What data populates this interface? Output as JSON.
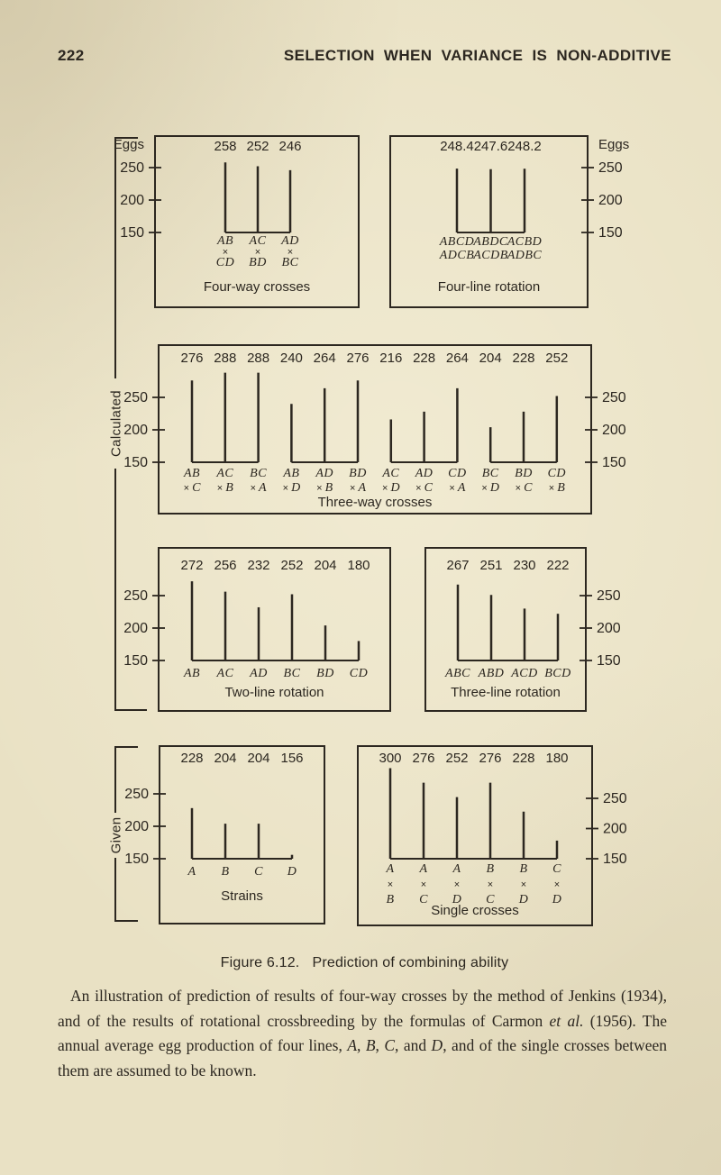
{
  "page": {
    "number": "222",
    "running_head": "SELECTION WHEN VARIANCE IS NON-ADDITIVE",
    "caption_label": "Figure 6.12.",
    "caption_title": "Prediction of combining ability",
    "body_segments": [
      {
        "text": "An illustration of prediction of results of four-way crosses by the method of Jenkins (1934), and of the results of rotational crossbreeding by the formulas of Carmon ",
        "italic": false
      },
      {
        "text": "et al.",
        "italic": true
      },
      {
        "text": " (1956).  The annual average egg production of four lines, ",
        "italic": false
      },
      {
        "text": "A",
        "italic": true
      },
      {
        "text": ", ",
        "italic": false
      },
      {
        "text": "B",
        "italic": true
      },
      {
        "text": ", ",
        "italic": false
      },
      {
        "text": "C",
        "italic": true
      },
      {
        "text": ", and ",
        "italic": false
      },
      {
        "text": "D",
        "italic": true
      },
      {
        "text": ", and of the single crosses between them are assumed to be known.",
        "italic": false
      }
    ]
  },
  "groups": {
    "calculated_label": "Calculated",
    "given_label": "Given"
  },
  "chart_data": [
    {
      "id": "four-way-crosses",
      "type": "bar",
      "title": "Four-way crosses",
      "categories": [
        [
          "AB",
          "×",
          "CD"
        ],
        [
          "AC",
          "×",
          "BD"
        ],
        [
          "AD",
          "×",
          "BC"
        ]
      ],
      "values": [
        258,
        252,
        246
      ],
      "ylabel": "Eggs",
      "yticks": [
        250,
        200,
        150
      ],
      "ylim": [
        150,
        310
      ],
      "axis_side": "left",
      "grid": false
    },
    {
      "id": "four-line-rotation",
      "type": "bar",
      "title": "Four-line rotation",
      "categories": [
        [
          "ABCD",
          "ADCB"
        ],
        [
          "ABDC",
          "ACDB"
        ],
        [
          "ACBD",
          "ADBC"
        ]
      ],
      "values": [
        248.4,
        247.6,
        248.2
      ],
      "ylabel": "Eggs",
      "yticks": [
        250,
        200,
        150
      ],
      "ylim": [
        150,
        310
      ],
      "axis_side": "right",
      "grid": false
    },
    {
      "id": "three-way-crosses",
      "type": "bar",
      "title": "Three-way crosses",
      "categories": [
        [
          "AB",
          "×C"
        ],
        [
          "AC",
          "×B"
        ],
        [
          "BC",
          "×A"
        ],
        [
          "AB",
          "×D"
        ],
        [
          "AD",
          "×B"
        ],
        [
          "BD",
          "×A"
        ],
        [
          "AC",
          "×D"
        ],
        [
          "AD",
          "×C"
        ],
        [
          "CD",
          "×A"
        ],
        [
          "BC",
          "×D"
        ],
        [
          "BD",
          "×C"
        ],
        [
          "CD",
          "×B"
        ]
      ],
      "values": [
        276,
        288,
        288,
        240,
        264,
        276,
        216,
        228,
        264,
        204,
        228,
        252
      ],
      "ylabel": "",
      "yticks": [
        250,
        200,
        150
      ],
      "ylim": [
        150,
        310
      ],
      "axis_side": "both",
      "group_size": 3,
      "grid": false
    },
    {
      "id": "two-line-rotation",
      "type": "bar",
      "title": "Two-line rotation",
      "categories": [
        [
          "AB"
        ],
        [
          "AC"
        ],
        [
          "AD"
        ],
        [
          "BC"
        ],
        [
          "BD"
        ],
        [
          "CD"
        ]
      ],
      "values": [
        272,
        256,
        232,
        252,
        204,
        180
      ],
      "ylabel": "",
      "yticks": [
        250,
        200,
        150
      ],
      "ylim": [
        150,
        310
      ],
      "axis_side": "left",
      "grid": false
    },
    {
      "id": "three-line-rotation",
      "type": "bar",
      "title": "Three-line rotation",
      "categories": [
        [
          "ABC"
        ],
        [
          "ABD"
        ],
        [
          "ACD"
        ],
        [
          "BCD"
        ]
      ],
      "values": [
        267,
        251,
        230,
        222
      ],
      "ylabel": "",
      "yticks": [
        250,
        200,
        150
      ],
      "ylim": [
        150,
        310
      ],
      "axis_side": "right",
      "grid": false
    },
    {
      "id": "strains",
      "type": "bar",
      "title": "Strains",
      "categories": [
        [
          "A"
        ],
        [
          "B"
        ],
        [
          "C"
        ],
        [
          "D"
        ]
      ],
      "values": [
        228,
        204,
        204,
        156
      ],
      "ylabel": "",
      "yticks": [
        250,
        200,
        150
      ],
      "ylim": [
        150,
        310
      ],
      "axis_side": "left",
      "grid": false
    },
    {
      "id": "single-crosses",
      "type": "bar",
      "title": "Single crosses",
      "categories": [
        [
          "A",
          "×",
          "B"
        ],
        [
          "A",
          "×",
          "C"
        ],
        [
          "A",
          "×",
          "D"
        ],
        [
          "B",
          "×",
          "C"
        ],
        [
          "B",
          "×",
          "D"
        ],
        [
          "C",
          "×",
          "D"
        ]
      ],
      "values": [
        300,
        276,
        252,
        276,
        228,
        180
      ],
      "ylabel": "",
      "yticks": [
        250,
        200,
        150
      ],
      "ylim": [
        150,
        310
      ],
      "axis_side": "right",
      "grid": false
    }
  ]
}
